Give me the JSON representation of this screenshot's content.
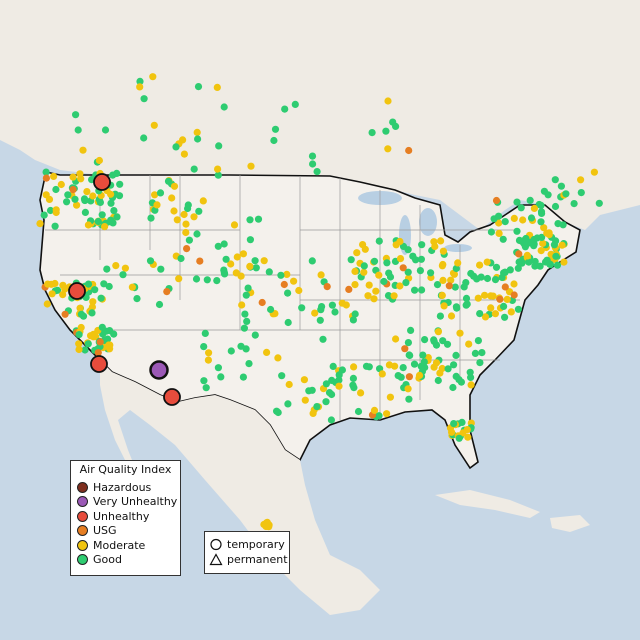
{
  "map": {
    "colors": {
      "ocean": "#c7d7e6",
      "land": "#f2efe9",
      "us_land": "#f4f1ec",
      "border": "#111111",
      "state_lines": "#9a9a9a",
      "lakes": "#b8cfe3"
    }
  },
  "legend": {
    "title": "Air Quality Index",
    "items": [
      {
        "label": "Hazardous",
        "color": "#7e2e1e"
      },
      {
        "label": "Very Unhealthy",
        "color": "#9b59b6"
      },
      {
        "label": "Unhealthy",
        "color": "#e74c3c"
      },
      {
        "label": "USG",
        "color": "#e67e22"
      },
      {
        "label": "Moderate",
        "color": "#f1c40f"
      },
      {
        "label": "Good",
        "color": "#2ecc71"
      }
    ]
  },
  "shape_legend": {
    "items": [
      {
        "label": "temporary",
        "shape": "circle-icon"
      },
      {
        "label": "permanent",
        "shape": "triangle-icon"
      }
    ]
  }
}
